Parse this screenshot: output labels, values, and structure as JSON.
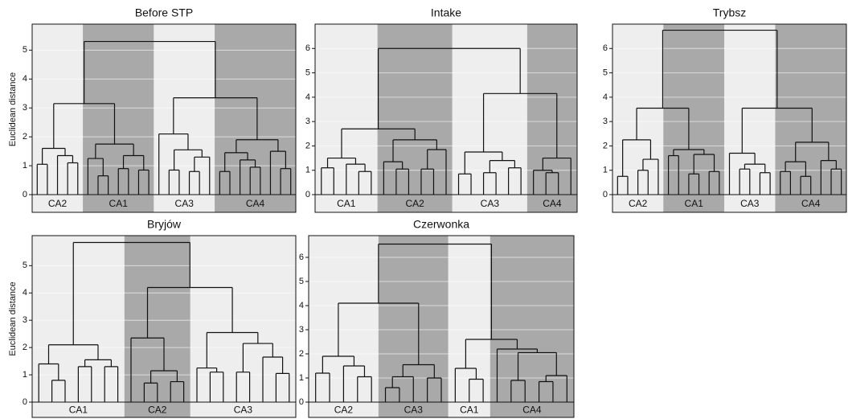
{
  "chart_data": [
    {
      "type": "dendrogram",
      "title": "Before STP",
      "ylabel": "Euclidean distance",
      "ylim": [
        0,
        5.9
      ],
      "yticks": [
        0,
        1,
        2,
        3,
        4,
        5
      ],
      "grid": true,
      "tree": {
        "height": 5.3,
        "children": [
          {
            "height": 3.15,
            "children": [
              {
                "height": 1.6,
                "label": "CA2",
                "color": "#eeeeee",
                "children": [
                  {
                    "height": 1.05,
                    "children": [
                      0,
                      0
                    ]
                  },
                  {
                    "height": 1.35,
                    "children": [
                      0,
                      {
                        "height": 1.1,
                        "children": [
                          0,
                          0
                        ]
                      }
                    ]
                  }
                ]
              },
              {
                "height": 1.75,
                "label": "CA1",
                "color": "#a9a9a9",
                "children": [
                  {
                    "height": 1.25,
                    "children": [
                      0,
                      {
                        "height": 0.65,
                        "children": [
                          0,
                          0
                        ]
                      }
                    ]
                  },
                  {
                    "height": 1.35,
                    "children": [
                      {
                        "height": 0.9,
                        "children": [
                          0,
                          0
                        ]
                      },
                      {
                        "height": 0.85,
                        "children": [
                          0,
                          0
                        ]
                      }
                    ]
                  }
                ]
              }
            ]
          },
          {
            "height": 3.35,
            "children": [
              {
                "height": 2.1,
                "label": "CA3",
                "color": "#eeeeee",
                "children": [
                  0,
                  {
                    "height": 1.55,
                    "children": [
                      {
                        "height": 0.85,
                        "children": [
                          0,
                          0
                        ]
                      },
                      {
                        "height": 1.3,
                        "children": [
                          {
                            "height": 0.8,
                            "children": [
                              0,
                              0
                            ]
                          },
                          0
                        ]
                      }
                    ]
                  }
                ]
              },
              {
                "height": 1.9,
                "label": "CA4",
                "color": "#a9a9a9",
                "children": [
                  {
                    "height": 1.45,
                    "children": [
                      {
                        "height": 0.8,
                        "children": [
                          0,
                          0
                        ]
                      },
                      {
                        "height": 1.2,
                        "children": [
                          0,
                          {
                            "height": 0.95,
                            "children": [
                              0,
                              0
                            ]
                          }
                        ]
                      }
                    ]
                  },
                  {
                    "height": 1.5,
                    "children": [
                      0,
                      {
                        "height": 0.9,
                        "children": [
                          0,
                          0
                        ]
                      }
                    ]
                  }
                ]
              }
            ]
          }
        ]
      }
    },
    {
      "type": "dendrogram",
      "title": "Intake",
      "ylim": [
        0,
        7
      ],
      "yticks": [
        0,
        1,
        2,
        3,
        4,
        5,
        6
      ],
      "grid": true,
      "tree": {
        "height": 6.0,
        "children": [
          {
            "height": 2.7,
            "children": [
              {
                "height": 1.5,
                "label": "CA1",
                "color": "#eeeeee",
                "children": [
                  {
                    "height": 1.1,
                    "children": [
                      0,
                      0
                    ]
                  },
                  {
                    "height": 1.25,
                    "children": [
                      0,
                      {
                        "height": 0.95,
                        "children": [
                          0,
                          0
                        ]
                      }
                    ]
                  }
                ]
              },
              {
                "height": 2.25,
                "label": "CA2",
                "color": "#a9a9a9",
                "children": [
                  {
                    "height": 1.35,
                    "children": [
                      0,
                      {
                        "height": 1.05,
                        "children": [
                          0,
                          0
                        ]
                      }
                    ]
                  },
                  {
                    "height": 1.85,
                    "children": [
                      {
                        "height": 1.05,
                        "children": [
                          0,
                          0
                        ]
                      },
                      0
                    ]
                  }
                ]
              }
            ]
          },
          {
            "height": 4.15,
            "children": [
              {
                "height": 1.75,
                "label": "CA3",
                "color": "#eeeeee",
                "children": [
                  {
                    "height": 0.85,
                    "children": [
                      0,
                      0
                    ]
                  },
                  {
                    "height": 1.4,
                    "children": [
                      {
                        "height": 0.9,
                        "children": [
                          0,
                          0
                        ]
                      },
                      {
                        "height": 1.1,
                        "children": [
                          0,
                          0
                        ]
                      }
                    ]
                  }
                ]
              },
              {
                "height": 1.5,
                "label": "CA4",
                "color": "#a9a9a9",
                "children": [
                  {
                    "height": 1.0,
                    "children": [
                      0,
                      {
                        "height": 0.9,
                        "children": [
                          0,
                          0
                        ]
                      }
                    ]
                  },
                  0
                ]
              }
            ]
          }
        ]
      }
    },
    {
      "type": "dendrogram",
      "title": "Trybsz",
      "ylim": [
        0,
        7
      ],
      "yticks": [
        0,
        1,
        2,
        3,
        4,
        5,
        6
      ],
      "grid": true,
      "tree": {
        "height": 6.75,
        "children": [
          {
            "height": 3.55,
            "children": [
              {
                "height": 2.25,
                "label": "CA2",
                "color": "#eeeeee",
                "children": [
                  {
                    "height": 0.75,
                    "children": [
                      0,
                      0
                    ]
                  },
                  {
                    "height": 1.45,
                    "children": [
                      {
                        "height": 1.0,
                        "children": [
                          0,
                          0
                        ]
                      },
                      0
                    ]
                  }
                ]
              },
              {
                "height": 1.85,
                "label": "CA1",
                "color": "#a9a9a9",
                "children": [
                  {
                    "height": 1.6,
                    "children": [
                      0,
                      0
                    ]
                  },
                  {
                    "height": 1.65,
                    "children": [
                      {
                        "height": 0.85,
                        "children": [
                          0,
                          0
                        ]
                      },
                      {
                        "height": 0.95,
                        "children": [
                          0,
                          0
                        ]
                      }
                    ]
                  }
                ]
              }
            ]
          },
          {
            "height": 3.55,
            "children": [
              {
                "height": 1.7,
                "label": "CA3",
                "color": "#eeeeee",
                "children": [
                  0,
                  {
                    "height": 1.25,
                    "children": [
                      {
                        "height": 1.05,
                        "children": [
                          0,
                          0
                        ]
                      },
                      {
                        "height": 0.9,
                        "children": [
                          0,
                          0
                        ]
                      }
                    ]
                  }
                ]
              },
              {
                "height": 2.15,
                "label": "CA4",
                "color": "#a9a9a9",
                "children": [
                  {
                    "height": 1.35,
                    "children": [
                      {
                        "height": 0.95,
                        "children": [
                          0,
                          0
                        ]
                      },
                      {
                        "height": 0.75,
                        "children": [
                          0,
                          0
                        ]
                      }
                    ]
                  },
                  {
                    "height": 1.4,
                    "children": [
                      0,
                      {
                        "height": 1.05,
                        "children": [
                          0,
                          0
                        ]
                      }
                    ]
                  }
                ]
              }
            ]
          }
        ]
      }
    },
    {
      "type": "dendrogram",
      "title": "Bryjów",
      "ylabel": "Euclidean distance",
      "ylim": [
        0,
        6.1
      ],
      "yticks": [
        0,
        1,
        2,
        3,
        4,
        5
      ],
      "grid": true,
      "tree": {
        "height": 5.85,
        "children": [
          {
            "height": 2.1,
            "label": "CA1",
            "color": "#eeeeee",
            "children": [
              {
                "height": 1.4,
                "children": [
                  0,
                  {
                    "height": 0.8,
                    "children": [
                      0,
                      0
                    ]
                  }
                ]
              },
              {
                "height": 1.55,
                "children": [
                  {
                    "height": 1.3,
                    "children": [
                      0,
                      0
                    ]
                  },
                  {
                    "height": 1.3,
                    "children": [
                      0,
                      0
                    ]
                  }
                ]
              }
            ]
          },
          {
            "height": 4.2,
            "children": [
              {
                "height": 2.35,
                "label": "CA2",
                "color": "#a9a9a9",
                "children": [
                  0,
                  {
                    "height": 1.15,
                    "children": [
                      {
                        "height": 0.7,
                        "children": [
                          0,
                          0
                        ]
                      },
                      {
                        "height": 0.75,
                        "children": [
                          0,
                          0
                        ]
                      }
                    ]
                  }
                ]
              },
              {
                "height": 2.55,
                "label": "CA3",
                "color": "#eeeeee",
                "children": [
                  {
                    "height": 1.25,
                    "children": [
                      0,
                      {
                        "height": 1.1,
                        "children": [
                          0,
                          0
                        ]
                      }
                    ]
                  },
                  {
                    "height": 2.15,
                    "children": [
                      {
                        "height": 1.1,
                        "children": [
                          0,
                          0
                        ]
                      },
                      {
                        "height": 1.65,
                        "children": [
                          0,
                          {
                            "height": 1.05,
                            "children": [
                              0,
                              0
                            ]
                          }
                        ]
                      }
                    ]
                  }
                ]
              }
            ]
          }
        ]
      }
    },
    {
      "type": "dendrogram",
      "title": "Czerwonka",
      "ylim": [
        0,
        6.9
      ],
      "yticks": [
        0,
        1,
        2,
        3,
        4,
        5,
        6
      ],
      "grid": true,
      "tree": {
        "height": 6.55,
        "children": [
          {
            "height": 4.1,
            "children": [
              {
                "height": 1.9,
                "label": "CA2",
                "color": "#eeeeee",
                "children": [
                  {
                    "height": 1.2,
                    "children": [
                      0,
                      0
                    ]
                  },
                  {
                    "height": 1.5,
                    "children": [
                      0,
                      {
                        "height": 1.05,
                        "children": [
                          0,
                          0
                        ]
                      }
                    ]
                  }
                ]
              },
              {
                "height": 1.55,
                "label": "CA3",
                "color": "#a9a9a9",
                "children": [
                  {
                    "height": 1.05,
                    "children": [
                      {
                        "height": 0.6,
                        "children": [
                          0,
                          0
                        ]
                      },
                      0
                    ]
                  },
                  {
                    "height": 1.0,
                    "children": [
                      0,
                      0
                    ]
                  }
                ]
              }
            ]
          },
          {
            "height": 2.6,
            "children": [
              {
                "height": 1.4,
                "label": "CA1",
                "color": "#eeeeee",
                "children": [
                  0,
                  {
                    "height": 0.95,
                    "children": [
                      0,
                      0
                    ]
                  }
                ]
              },
              {
                "height": 2.2,
                "label": "CA4",
                "color": "#a9a9a9",
                "children": [
                  0,
                  {
                    "height": 2.05,
                    "children": [
                      {
                        "height": 0.9,
                        "children": [
                          0,
                          0
                        ]
                      },
                      {
                        "height": 1.1,
                        "children": [
                          {
                            "height": 0.85,
                            "children": [
                              0,
                              0
                            ]
                          },
                          0
                        ]
                      }
                    ]
                  }
                ]
              }
            ]
          }
        ]
      }
    }
  ]
}
